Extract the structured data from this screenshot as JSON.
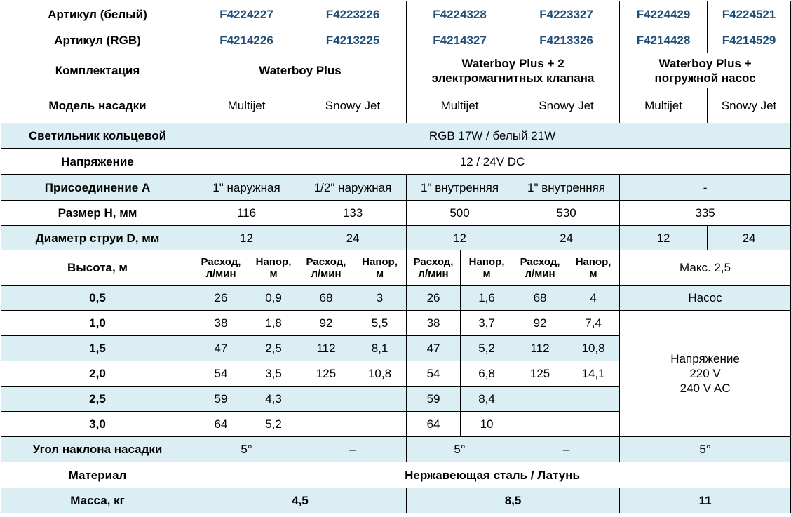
{
  "articul_white": {
    "label": "Артикул (белый)",
    "values": [
      "F4224227",
      "F4223226",
      "F4224328",
      "F4223327",
      "F4224429",
      "F4224521"
    ]
  },
  "articul_rgb": {
    "label": "Артикул (RGB)",
    "values": [
      "F4214226",
      "F4213225",
      "F4214327",
      "F4213326",
      "F4214428",
      "F4214529"
    ]
  },
  "kit": {
    "label": "Комплектация",
    "values": [
      "Waterboy Plus",
      "Waterboy Plus + 2\nэлектромагнитных клапана",
      "Waterboy Plus +\nпогружной насос"
    ]
  },
  "nozzle": {
    "label": "Модель насадки",
    "values": [
      "Multijet",
      "Snowy Jet",
      "Multijet",
      "Snowy Jet",
      "Multijet",
      "Snowy Jet"
    ]
  },
  "light": {
    "label": "Светильник кольцевой",
    "value": "RGB 17W  /  белый 21W"
  },
  "voltage": {
    "label": "Напряжение",
    "value": "12 / 24V DC"
  },
  "connection": {
    "label": "Присоединение A",
    "values": [
      "1\" наружная",
      "1/2\" наружная",
      "1\" внутренняя",
      "1\" внутренняя",
      "-"
    ]
  },
  "size_h": {
    "label": "Размер H, мм",
    "values": [
      "116",
      "133",
      "500",
      "530",
      "335"
    ]
  },
  "jet_d": {
    "label": "Диаметр струи D, мм",
    "values": [
      "12",
      "24",
      "12",
      "24",
      "12",
      "24"
    ]
  },
  "height": {
    "label": "Высота, м",
    "flow_header": "Расход,\nл/мин",
    "head_header": "Напор,\nм",
    "max": "Макс. 2,5"
  },
  "flow_rows": [
    {
      "h": "0,5",
      "v": [
        "26",
        "0,9",
        "68",
        "3",
        "26",
        "1,6",
        "68",
        "4"
      ]
    },
    {
      "h": "1,0",
      "v": [
        "38",
        "1,8",
        "92",
        "5,5",
        "38",
        "3,7",
        "92",
        "7,4"
      ]
    },
    {
      "h": "1,5",
      "v": [
        "47",
        "2,5",
        "112",
        "8,1",
        "47",
        "5,2",
        "112",
        "10,8"
      ]
    },
    {
      "h": "2,0",
      "v": [
        "54",
        "3,5",
        "125",
        "10,8",
        "54",
        "6,8",
        "125",
        "14,1"
      ]
    },
    {
      "h": "2,5",
      "v": [
        "59",
        "4,3",
        "",
        "",
        "59",
        "8,4",
        "",
        ""
      ]
    },
    {
      "h": "3,0",
      "v": [
        "64",
        "5,2",
        "",
        "",
        "64",
        "10",
        "",
        ""
      ]
    }
  ],
  "pump": {
    "label": "Насос",
    "voltage": "Напряжение\n220 V\n240 V AC"
  },
  "angle": {
    "label": "Угол наклона насадки",
    "values": [
      "5°",
      "–",
      "5°",
      "–",
      "5°"
    ]
  },
  "material": {
    "label": "Материал",
    "value": "Нержавеющая сталь / Латунь"
  },
  "mass": {
    "label": "Масса, кг",
    "values": [
      "4,5",
      "8,5",
      "11"
    ]
  }
}
